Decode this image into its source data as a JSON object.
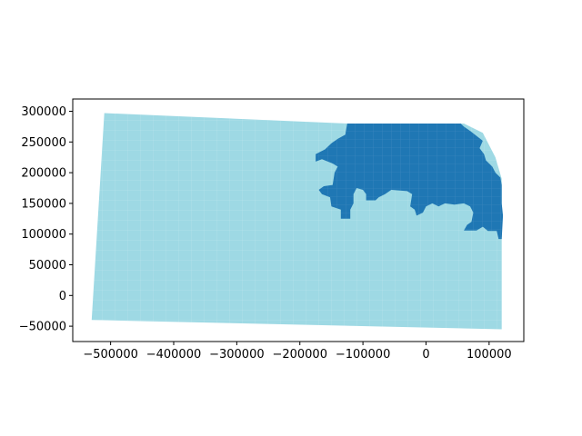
{
  "chart_data": {
    "type": "choropleth",
    "grid": false,
    "xlim": [
      -560000,
      155000
    ],
    "ylim": [
      -75000,
      320000
    ],
    "x_ticks": [
      {
        "value": -500000,
        "label": "−500000"
      },
      {
        "value": -400000,
        "label": "−400000"
      },
      {
        "value": -300000,
        "label": "−300000"
      },
      {
        "value": -200000,
        "label": "−200000"
      },
      {
        "value": -100000,
        "label": "−100000"
      },
      {
        "value": 0,
        "label": "0"
      },
      {
        "value": 100000,
        "label": "100000"
      }
    ],
    "y_ticks": [
      {
        "value": -50000,
        "label": "−50000"
      },
      {
        "value": 0,
        "label": "0"
      },
      {
        "value": 50000,
        "label": "50000"
      },
      {
        "value": 100000,
        "label": "100000"
      },
      {
        "value": 150000,
        "label": "150000"
      },
      {
        "value": 200000,
        "label": "200000"
      },
      {
        "value": 250000,
        "label": "250000"
      },
      {
        "value": 300000,
        "label": "300000"
      }
    ],
    "regions": [
      {
        "name": "base-region",
        "color": "#9ed9e4",
        "outline": [
          [
            -510000,
            297000
          ],
          [
            -125000,
            280000
          ],
          [
            40000,
            280000
          ],
          [
            60000,
            280000
          ],
          [
            90000,
            265000
          ],
          [
            110000,
            225000
          ],
          [
            120000,
            190000
          ],
          [
            120000,
            90000
          ],
          [
            120000,
            -55000
          ],
          [
            -530000,
            -40000
          ]
        ]
      },
      {
        "name": "highlight-region",
        "color": "#1f77b4",
        "outline": [
          [
            -125000,
            280000
          ],
          [
            55000,
            280000
          ],
          [
            60000,
            275000
          ],
          [
            70000,
            268000
          ],
          [
            80000,
            260000
          ],
          [
            90000,
            252000
          ],
          [
            85000,
            240000
          ],
          [
            92000,
            230000
          ],
          [
            95000,
            220000
          ],
          [
            105000,
            210000
          ],
          [
            110000,
            200000
          ],
          [
            118000,
            192000
          ],
          [
            120000,
            180000
          ],
          [
            120000,
            150000
          ],
          [
            122000,
            130000
          ],
          [
            120000,
            92000
          ],
          [
            115000,
            92000
          ],
          [
            112000,
            105000
          ],
          [
            98000,
            105000
          ],
          [
            90000,
            112000
          ],
          [
            80000,
            106000
          ],
          [
            60000,
            106000
          ],
          [
            65000,
            115000
          ],
          [
            72000,
            120000
          ],
          [
            75000,
            135000
          ],
          [
            70000,
            145000
          ],
          [
            60000,
            150000
          ],
          [
            45000,
            148000
          ],
          [
            30000,
            150000
          ],
          [
            20000,
            145000
          ],
          [
            10000,
            150000
          ],
          [
            0,
            145000
          ],
          [
            -5000,
            135000
          ],
          [
            -15000,
            130000
          ],
          [
            -18000,
            140000
          ],
          [
            -25000,
            145000
          ],
          [
            -22000,
            165000
          ],
          [
            -30000,
            170000
          ],
          [
            -55000,
            172000
          ],
          [
            -65000,
            165000
          ],
          [
            -75000,
            160000
          ],
          [
            -80000,
            155000
          ],
          [
            -95000,
            155000
          ],
          [
            -95000,
            165000
          ],
          [
            -100000,
            172000
          ],
          [
            -110000,
            175000
          ],
          [
            -115000,
            165000
          ],
          [
            -115000,
            150000
          ],
          [
            -120000,
            140000
          ],
          [
            -120000,
            125000
          ],
          [
            -135000,
            125000
          ],
          [
            -135000,
            140000
          ],
          [
            -150000,
            145000
          ],
          [
            -152000,
            160000
          ],
          [
            -165000,
            165000
          ],
          [
            -170000,
            172000
          ],
          [
            -162000,
            178000
          ],
          [
            -148000,
            180000
          ],
          [
            -145000,
            200000
          ],
          [
            -140000,
            210000
          ],
          [
            -148000,
            215000
          ],
          [
            -165000,
            222000
          ],
          [
            -175000,
            218000
          ],
          [
            -175000,
            230000
          ],
          [
            -160000,
            238000
          ],
          [
            -150000,
            248000
          ],
          [
            -140000,
            255000
          ],
          [
            -128000,
            262000
          ],
          [
            -125000,
            280000
          ]
        ]
      }
    ]
  }
}
